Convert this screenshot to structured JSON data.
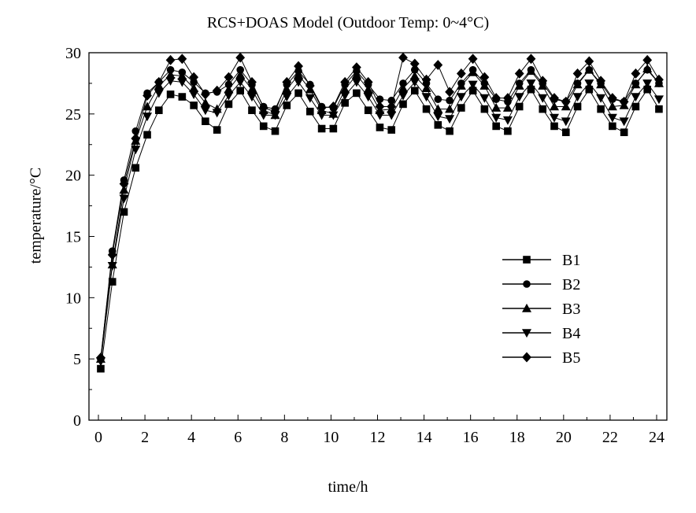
{
  "chart_data": {
    "type": "line",
    "title": "RCS+DOAS Model (Outdoor Temp: 0~4°C)",
    "xlabel": "time/h",
    "ylabel": "temperature/°C",
    "xlim": [
      0,
      24
    ],
    "ylim": [
      0,
      30
    ],
    "xticks": [
      0,
      2,
      4,
      6,
      8,
      10,
      12,
      14,
      16,
      18,
      20,
      22,
      24
    ],
    "yticks": [
      0,
      5,
      10,
      15,
      20,
      25,
      30
    ],
    "grid": false,
    "legend_position": "right",
    "x": [
      0.1,
      0.6,
      1.1,
      1.6,
      2.1,
      2.6,
      3.1,
      3.6,
      4.1,
      4.6,
      5.1,
      5.6,
      6.1,
      6.6,
      7.1,
      7.6,
      8.1,
      8.6,
      9.1,
      9.6,
      10.1,
      10.6,
      11.1,
      11.6,
      12.1,
      12.6,
      13.1,
      13.6,
      14.1,
      14.6,
      15.1,
      15.6,
      16.1,
      16.6,
      17.1,
      17.6,
      18.1,
      18.6,
      19.1,
      19.6,
      20.1,
      20.6,
      21.1,
      21.6,
      22.1,
      22.6,
      23.1,
      23.6,
      24.1
    ],
    "series": [
      {
        "name": "B1",
        "marker": "square",
        "values": [
          4.2,
          11.3,
          17.0,
          20.6,
          23.3,
          25.3,
          26.6,
          26.4,
          25.7,
          24.4,
          23.7,
          25.8,
          26.9,
          25.3,
          24.0,
          23.6,
          25.7,
          26.7,
          25.2,
          23.8,
          23.8,
          25.9,
          26.7,
          25.3,
          23.9,
          23.7,
          25.8,
          26.9,
          25.4,
          24.1,
          23.6,
          25.5,
          26.9,
          25.4,
          24.0,
          23.6,
          25.6,
          27.0,
          25.4,
          24.0,
          23.5,
          25.6,
          27.0,
          25.4,
          24.0,
          23.5,
          25.6,
          27.0,
          25.4
        ]
      },
      {
        "name": "B2",
        "marker": "circle",
        "values": [
          5.0,
          13.8,
          19.6,
          23.6,
          26.7,
          27.6,
          28.6,
          28.4,
          27.6,
          26.7,
          26.8,
          27.4,
          28.6,
          27.4,
          25.6,
          25.4,
          27.4,
          28.5,
          27.4,
          25.6,
          25.5,
          27.4,
          28.5,
          27.4,
          26.2,
          26.1,
          27.5,
          28.6,
          27.5,
          26.2,
          26.1,
          27.5,
          28.6,
          27.5,
          26.2,
          26.0,
          27.5,
          28.6,
          27.5,
          26.2,
          26.0,
          27.5,
          28.6,
          27.5,
          26.2,
          26.0,
          27.5,
          28.6,
          27.5
        ]
      },
      {
        "name": "B3",
        "marker": "triangle-up",
        "values": [
          5.0,
          12.7,
          18.8,
          22.8,
          25.6,
          27.3,
          28.2,
          28.1,
          27.1,
          25.9,
          25.4,
          27.0,
          28.2,
          27.0,
          25.3,
          24.9,
          27.0,
          28.2,
          27.0,
          25.3,
          25.0,
          27.0,
          28.2,
          27.0,
          25.3,
          25.4,
          27.1,
          28.1,
          27.1,
          25.4,
          25.4,
          27.3,
          28.4,
          27.3,
          25.5,
          25.5,
          27.3,
          28.5,
          27.3,
          25.6,
          25.6,
          27.4,
          28.6,
          27.4,
          25.6,
          25.7,
          27.4,
          28.7,
          27.5
        ]
      },
      {
        "name": "B4",
        "marker": "triangle-down",
        "values": [
          4.8,
          12.6,
          18.1,
          22.1,
          24.8,
          26.7,
          27.7,
          27.6,
          26.6,
          25.3,
          25.1,
          26.5,
          27.6,
          26.4,
          24.9,
          24.9,
          26.4,
          27.6,
          26.3,
          24.9,
          24.9,
          26.5,
          27.6,
          26.4,
          24.9,
          24.9,
          26.5,
          27.6,
          26.4,
          24.8,
          24.6,
          26.4,
          27.4,
          26.3,
          24.7,
          24.5,
          26.4,
          27.5,
          26.3,
          24.7,
          24.4,
          26.4,
          27.5,
          26.3,
          24.7,
          24.4,
          26.4,
          27.5,
          26.2
        ]
      },
      {
        "name": "B5",
        "marker": "diamond",
        "values": [
          5.1,
          13.5,
          19.3,
          23.0,
          26.5,
          27.6,
          29.4,
          29.5,
          28.0,
          26.6,
          26.9,
          28.0,
          29.6,
          27.6,
          25.5,
          25.2,
          27.6,
          28.9,
          27.3,
          25.5,
          25.6,
          27.6,
          28.8,
          27.6,
          25.6,
          25.6,
          29.6,
          29.1,
          27.8,
          29.0,
          26.8,
          28.3,
          29.5,
          28.0,
          26.3,
          26.3,
          28.3,
          29.5,
          27.7,
          26.3,
          26.0,
          28.3,
          29.3,
          27.7,
          26.3,
          26.0,
          28.3,
          29.4,
          27.8
        ]
      }
    ]
  }
}
